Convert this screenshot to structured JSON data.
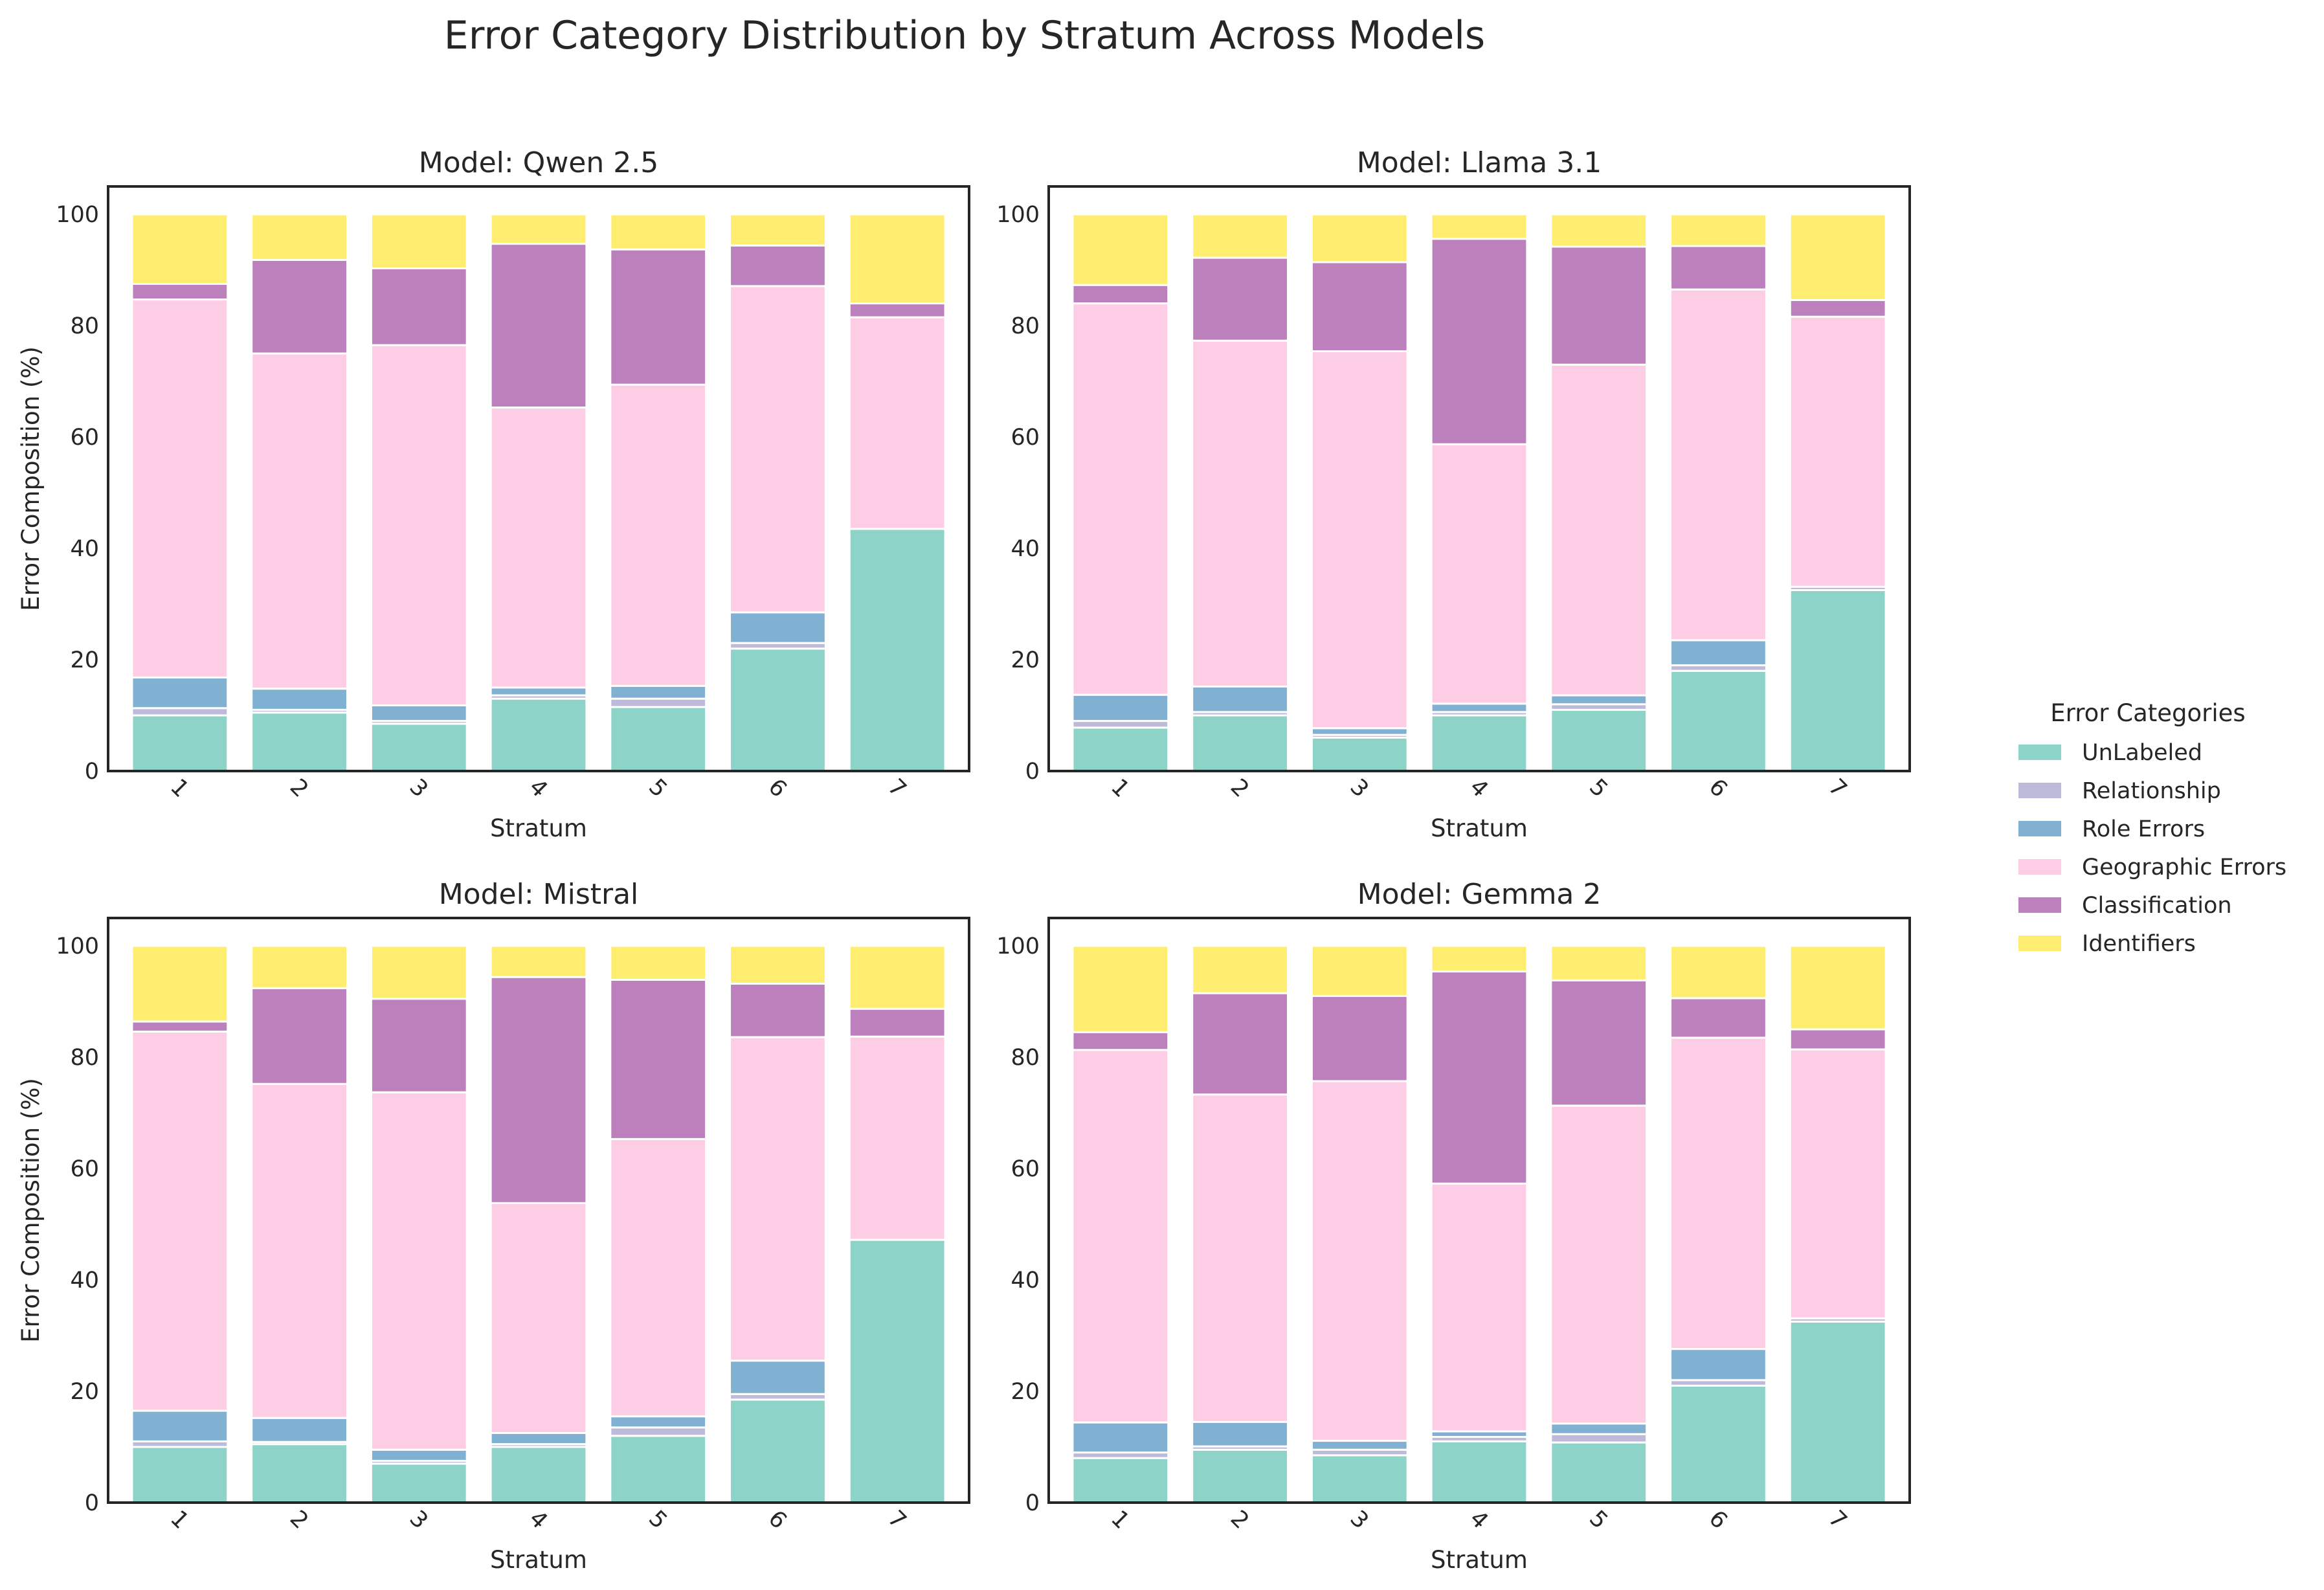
{
  "figure": {
    "title": "Error Category Distribution by Stratum Across Models"
  },
  "legend": {
    "title": "Error Categories",
    "placement": "right"
  },
  "chart_data": [
    {
      "type": "bar",
      "stacked": true,
      "title": "Model: Qwen 2.5",
      "xlabel": "Stratum",
      "ylabel": "Error Composition (%)",
      "ylim": [
        0,
        105
      ],
      "yticks": [
        0,
        20,
        40,
        60,
        80,
        100
      ],
      "categories": [
        "1",
        "2",
        "3",
        "4",
        "5",
        "6",
        "7"
      ],
      "series": [
        {
          "name": "UnLabeled",
          "color": "#8dd3c7",
          "values": [
            10.0,
            10.5,
            8.5,
            13.0,
            11.5,
            22.0,
            43.5
          ]
        },
        {
          "name": "Relationship",
          "color": "#bebada",
          "values": [
            1.3,
            0.5,
            0.5,
            0.6,
            1.5,
            1.0,
            0.0
          ]
        },
        {
          "name": "Role Errors",
          "color": "#80b1d3",
          "values": [
            5.5,
            3.8,
            2.8,
            1.4,
            2.3,
            5.5,
            0.0
          ]
        },
        {
          "name": "Geographic Errors",
          "color": "#fccde5",
          "values": [
            67.9,
            60.2,
            64.7,
            50.3,
            54.1,
            58.6,
            38.0
          ]
        },
        {
          "name": "Classification",
          "color": "#bc80bd",
          "values": [
            2.8,
            16.8,
            13.8,
            29.4,
            24.3,
            7.3,
            2.5
          ]
        },
        {
          "name": "Identifiers",
          "color": "#ffed6f",
          "values": [
            12.5,
            8.2,
            9.7,
            5.3,
            6.3,
            5.6,
            16.0
          ]
        }
      ]
    },
    {
      "type": "bar",
      "stacked": true,
      "title": "Model: Llama 3.1",
      "xlabel": "Stratum",
      "ylabel": "",
      "ylim": [
        0,
        105
      ],
      "yticks": [
        0,
        20,
        40,
        60,
        80,
        100
      ],
      "categories": [
        "1",
        "2",
        "3",
        "4",
        "5",
        "6",
        "7"
      ],
      "series": [
        {
          "name": "UnLabeled",
          "color": "#8dd3c7",
          "values": [
            7.8,
            10.0,
            6.0,
            10.0,
            11.0,
            18.0,
            32.5
          ]
        },
        {
          "name": "Relationship",
          "color": "#bebada",
          "values": [
            1.2,
            0.6,
            0.5,
            0.6,
            1.0,
            1.0,
            0.6
          ]
        },
        {
          "name": "Role Errors",
          "color": "#80b1d3",
          "values": [
            4.7,
            4.6,
            1.2,
            1.5,
            1.6,
            4.5,
            0.0
          ]
        },
        {
          "name": "Geographic Errors",
          "color": "#fccde5",
          "values": [
            70.3,
            62.1,
            67.7,
            46.6,
            59.4,
            63.0,
            48.5
          ]
        },
        {
          "name": "Classification",
          "color": "#bc80bd",
          "values": [
            3.3,
            14.9,
            16.0,
            36.9,
            21.2,
            7.8,
            3.0
          ]
        },
        {
          "name": "Identifiers",
          "color": "#ffed6f",
          "values": [
            12.7,
            7.8,
            8.6,
            4.4,
            5.8,
            5.7,
            15.4
          ]
        }
      ]
    },
    {
      "type": "bar",
      "stacked": true,
      "title": "Model: Mistral",
      "xlabel": "Stratum",
      "ylabel": "Error Composition (%)",
      "ylim": [
        0,
        105
      ],
      "yticks": [
        0,
        20,
        40,
        60,
        80,
        100
      ],
      "categories": [
        "1",
        "2",
        "3",
        "4",
        "5",
        "6",
        "7"
      ],
      "series": [
        {
          "name": "UnLabeled",
          "color": "#8dd3c7",
          "values": [
            10.0,
            10.5,
            7.0,
            10.0,
            12.0,
            18.5,
            47.2
          ]
        },
        {
          "name": "Relationship",
          "color": "#bebada",
          "values": [
            1.0,
            0.4,
            0.5,
            0.5,
            1.5,
            1.0,
            0.0
          ]
        },
        {
          "name": "Role Errors",
          "color": "#80b1d3",
          "values": [
            5.5,
            4.3,
            2.0,
            2.0,
            2.0,
            6.0,
            0.0
          ]
        },
        {
          "name": "Geographic Errors",
          "color": "#fccde5",
          "values": [
            68.1,
            60.0,
            64.2,
            41.3,
            49.8,
            58.1,
            36.5
          ]
        },
        {
          "name": "Classification",
          "color": "#bc80bd",
          "values": [
            1.8,
            17.2,
            16.8,
            40.6,
            28.6,
            9.6,
            5.0
          ]
        },
        {
          "name": "Identifiers",
          "color": "#ffed6f",
          "values": [
            13.6,
            7.6,
            9.5,
            5.6,
            6.1,
            6.8,
            11.3
          ]
        }
      ]
    },
    {
      "type": "bar",
      "stacked": true,
      "title": "Model: Gemma 2",
      "xlabel": "Stratum",
      "ylabel": "",
      "ylim": [
        0,
        105
      ],
      "yticks": [
        0,
        20,
        40,
        60,
        80,
        100
      ],
      "categories": [
        "1",
        "2",
        "3",
        "4",
        "5",
        "6",
        "7"
      ],
      "series": [
        {
          "name": "UnLabeled",
          "color": "#8dd3c7",
          "values": [
            8.0,
            9.5,
            8.5,
            11.0,
            10.8,
            21.0,
            32.5
          ]
        },
        {
          "name": "Relationship",
          "color": "#bebada",
          "values": [
            1.0,
            0.6,
            1.0,
            0.8,
            1.5,
            1.0,
            0.6
          ]
        },
        {
          "name": "Role Errors",
          "color": "#80b1d3",
          "values": [
            5.4,
            4.4,
            1.6,
            1.0,
            1.9,
            5.6,
            0.0
          ]
        },
        {
          "name": "Geographic Errors",
          "color": "#fccde5",
          "values": [
            66.9,
            58.8,
            64.6,
            44.5,
            57.1,
            55.9,
            48.3
          ]
        },
        {
          "name": "Classification",
          "color": "#bc80bd",
          "values": [
            3.2,
            18.2,
            15.3,
            38.1,
            22.5,
            7.1,
            3.6
          ]
        },
        {
          "name": "Identifiers",
          "color": "#ffed6f",
          "values": [
            15.5,
            8.5,
            9.0,
            4.6,
            6.2,
            9.4,
            15.0
          ]
        }
      ]
    }
  ]
}
